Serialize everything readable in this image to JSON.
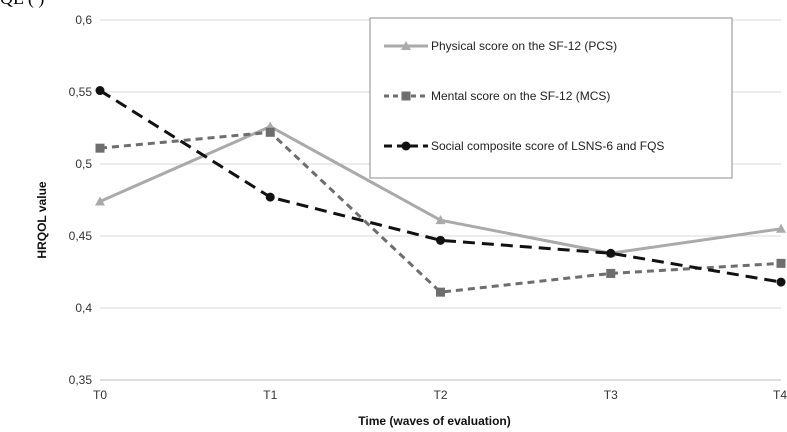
{
  "top_fragment": "QL (       )",
  "chart_data": {
    "type": "line",
    "categories": [
      "T0",
      "T1",
      "T2",
      "T3",
      "T4"
    ],
    "xlabel": "Time (waves of evaluation)",
    "ylabel": "HRQOL value",
    "ylim": [
      0.35,
      0.6
    ],
    "yticks": [
      "0,35",
      "0,4",
      "0,45",
      "0,5",
      "0,55",
      "0,6"
    ],
    "grid": true,
    "legend_position": "top-right",
    "series": [
      {
        "name": "Physical score on the SF-12 (PCS)",
        "values": [
          0.474,
          0.526,
          0.461,
          0.438,
          0.455
        ],
        "color": "#aaaaaa",
        "marker": "triangle",
        "dash": "solid"
      },
      {
        "name": "Mental score on the SF-12 (MCS)",
        "values": [
          0.511,
          0.522,
          0.411,
          0.424,
          0.431
        ],
        "color": "#6e6e6e",
        "marker": "square",
        "dash": "dashed"
      },
      {
        "name": "Social composite score of LSNS-6 and FQS",
        "values": [
          0.551,
          0.477,
          0.447,
          0.438,
          0.418
        ],
        "color": "#111111",
        "marker": "circle",
        "dash": "long-dashed"
      }
    ]
  }
}
